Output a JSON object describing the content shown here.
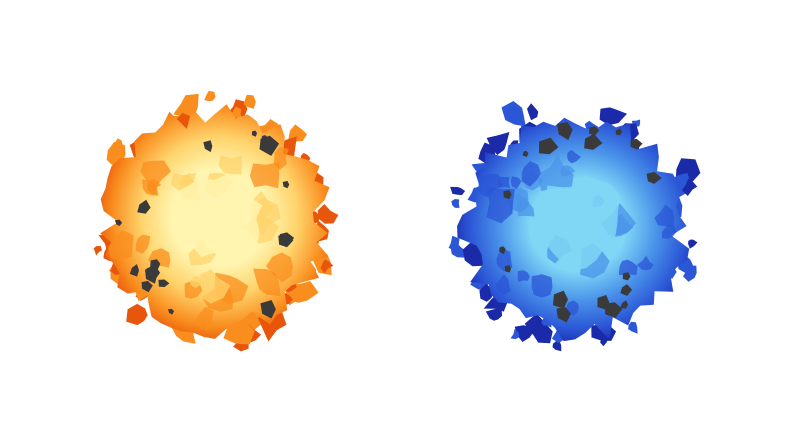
{
  "sprites": [
    {
      "id": "fire-orb",
      "element": "fire",
      "colors": {
        "edge": "#e8560c",
        "mid": "#f98d1e",
        "inner": "#ffd36b",
        "core": "#fff5b0",
        "debris": "#3a3a3a"
      }
    },
    {
      "id": "ice-orb",
      "element": "ice",
      "colors": {
        "edge": "#1a2aa8",
        "mid": "#2b56d6",
        "inner": "#4a93ea",
        "core": "#7fd6f5",
        "debris": "#3a3a3a"
      }
    }
  ]
}
